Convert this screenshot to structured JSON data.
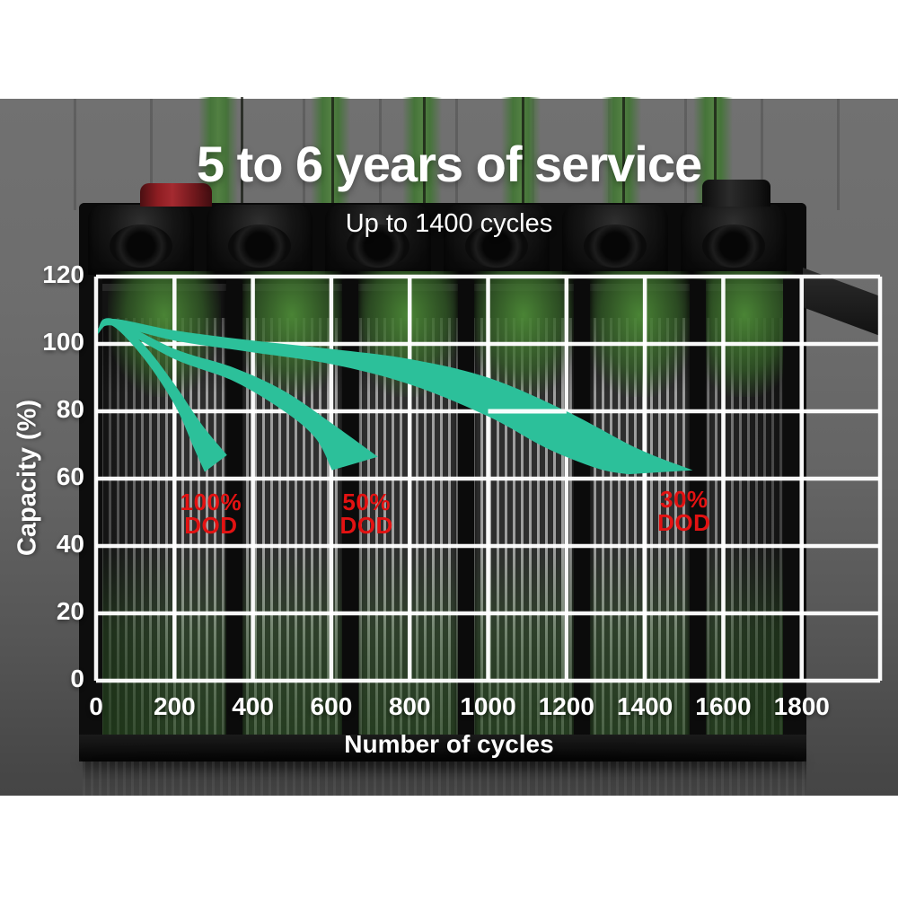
{
  "header": {
    "title": "5 to 6 years of service",
    "subtitle": "Up to 1400 cycles"
  },
  "colors": {
    "band_teal": "#2cc09a",
    "dod_label_red": "#e31212",
    "grid_white": "#ffffff",
    "cell_glow_green": "#4a7c3b",
    "terminal_red": "#8e1d22"
  },
  "chart_data": {
    "type": "area",
    "title": "5 to 6 years of service",
    "subtitle": "Up to 1400 cycles",
    "xlabel": "Number of cycles",
    "ylabel": "Capacity (%)",
    "xlim": [
      0,
      2000
    ],
    "ylim": [
      0,
      120
    ],
    "xticks": [
      0,
      200,
      400,
      600,
      800,
      1000,
      1200,
      1400,
      1600,
      1800
    ],
    "yticks": [
      0,
      20,
      40,
      60,
      80,
      100,
      120
    ],
    "grid": true,
    "legend": "none",
    "series": [
      {
        "name": "100% DOD",
        "label_lines": [
          "100%",
          "DOD"
        ],
        "label_pos": {
          "cycles": 293,
          "capacity": 49.5
        },
        "band_top": [
          [
            5,
            104.5
          ],
          [
            40,
            107.5
          ],
          [
            120,
            100
          ],
          [
            200,
            88
          ],
          [
            270,
            76
          ],
          [
            334,
            67
          ]
        ],
        "band_bottom": [
          [
            5,
            103
          ],
          [
            40,
            105.5
          ],
          [
            120,
            96
          ],
          [
            200,
            82
          ],
          [
            250,
            69
          ],
          [
            277,
            62
          ]
        ]
      },
      {
        "name": "50% DOD",
        "label_lines": [
          "50%",
          "DOD"
        ],
        "label_pos": {
          "cycles": 690,
          "capacity": 49.5
        },
        "band_top": [
          [
            5,
            104.5
          ],
          [
            40,
            107.5
          ],
          [
            200,
            98.5
          ],
          [
            350,
            93
          ],
          [
            480,
            86
          ],
          [
            600,
            76.5
          ],
          [
            719,
            66.5
          ]
        ],
        "band_bottom": [
          [
            5,
            103
          ],
          [
            40,
            105.5
          ],
          [
            200,
            95.5
          ],
          [
            350,
            89
          ],
          [
            480,
            80
          ],
          [
            560,
            72
          ],
          [
            602,
            62.5
          ]
        ]
      },
      {
        "name": "30% DOD",
        "label_lines": [
          "30%",
          "DOD"
        ],
        "label_pos": {
          "cycles": 1500,
          "capacity": 50.5
        },
        "band_top": [
          [
            5,
            104.5
          ],
          [
            40,
            107.5
          ],
          [
            200,
            104
          ],
          [
            400,
            101
          ],
          [
            600,
            98.5
          ],
          [
            800,
            95.5
          ],
          [
            1000,
            90
          ],
          [
            1200,
            80
          ],
          [
            1380,
            69
          ],
          [
            1522,
            62.5
          ]
        ],
        "band_bottom": [
          [
            5,
            103
          ],
          [
            40,
            105.5
          ],
          [
            200,
            101
          ],
          [
            400,
            97.5
          ],
          [
            600,
            94
          ],
          [
            800,
            88
          ],
          [
            1000,
            78.5
          ],
          [
            1150,
            69
          ],
          [
            1280,
            63
          ],
          [
            1357,
            61.3
          ]
        ]
      }
    ]
  }
}
